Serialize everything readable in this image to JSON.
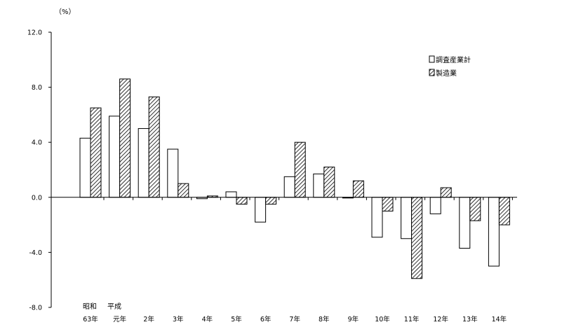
{
  "chart_data": {
    "type": "bar",
    "unit_label": "（%）",
    "era_labels": [
      "昭和",
      "平成"
    ],
    "categories": [
      "63年",
      "元年",
      "2年",
      "3年",
      "4年",
      "5年",
      "6年",
      "7年",
      "8年",
      "9年",
      "10年",
      "11年",
      "12年",
      "13年",
      "14年"
    ],
    "series": [
      {
        "name": "調査産業計",
        "fill": "white",
        "values": [
          4.3,
          5.9,
          5.0,
          3.5,
          -0.1,
          0.4,
          -1.8,
          1.5,
          1.7,
          -0.05,
          -2.9,
          -3.0,
          -1.2,
          -3.7,
          -5.0
        ]
      },
      {
        "name": "製造業",
        "fill": "hatched",
        "values": [
          6.5,
          8.6,
          7.3,
          1.0,
          0.1,
          -0.5,
          -0.5,
          4.0,
          2.2,
          1.2,
          -1.0,
          -5.9,
          0.7,
          -1.7,
          -2.0
        ]
      }
    ],
    "yticks": [
      "12.0",
      "8.0",
      "4.0",
      "0.0",
      "-4.0",
      "-8.0"
    ],
    "ylim": [
      -8,
      12
    ],
    "xlabel": "",
    "ylabel": "",
    "grid": false,
    "legend_position": "top-right"
  },
  "colors": {
    "bar_stroke": "#000000",
    "axis": "#000000",
    "background": "#ffffff"
  }
}
